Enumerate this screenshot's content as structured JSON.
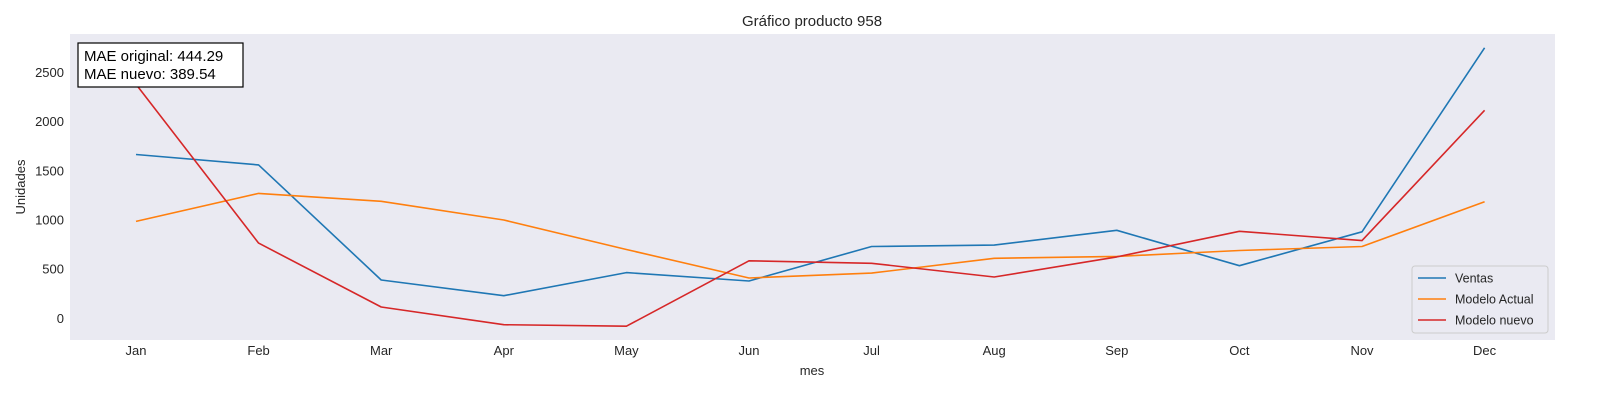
{
  "chart_data": {
    "type": "line",
    "title": "Gráfico producto 958",
    "xlabel": "mes",
    "ylabel": "Unidades",
    "categories": [
      "Jan",
      "Feb",
      "Mar",
      "Apr",
      "May",
      "Jun",
      "Jul",
      "Aug",
      "Sep",
      "Oct",
      "Nov",
      "Dec"
    ],
    "yticks": [
      0,
      500,
      1000,
      1500,
      2000,
      2500
    ],
    "ylim": [
      -220,
      2890
    ],
    "grid": false,
    "legend_position": "lower-right",
    "series": [
      {
        "name": "Ventas",
        "color": "#1f77b4",
        "values": [
          1665,
          1560,
          390,
          230,
          465,
          380,
          730,
          745,
          895,
          535,
          880,
          2750
        ]
      },
      {
        "name": "Modelo Actual",
        "color": "#ff7f0e",
        "values": [
          985,
          1270,
          1190,
          1000,
          700,
          410,
          460,
          610,
          630,
          690,
          730,
          1185
        ]
      },
      {
        "name": "Modelo nuevo",
        "color": "#d62728",
        "values": [
          2380,
          765,
          115,
          -65,
          -80,
          585,
          560,
          420,
          625,
          885,
          790,
          2115
        ]
      }
    ],
    "annotation": {
      "lines": [
        "MAE original: 444.29",
        "MAE nuevo: 389.54"
      ]
    }
  }
}
